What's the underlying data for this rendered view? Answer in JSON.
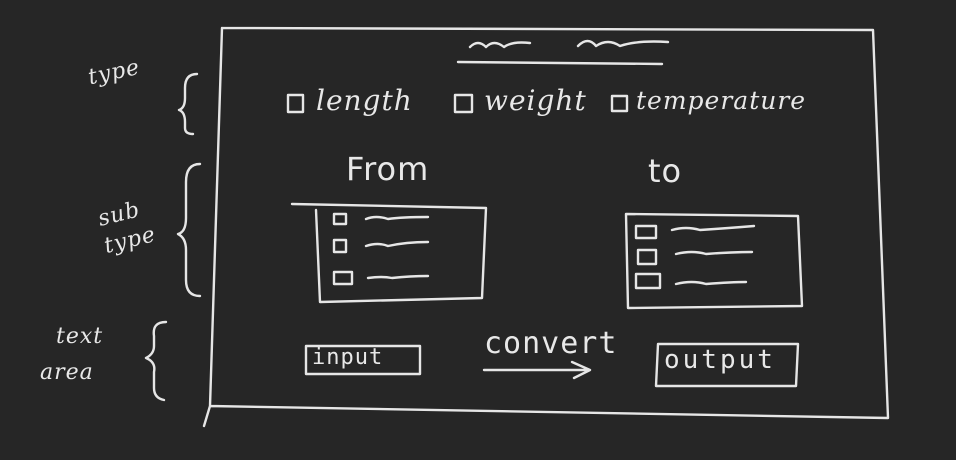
{
  "annotations": {
    "type": "type",
    "subtype_line1": "sub",
    "subtype_line2": "type",
    "textarea_line1": "text",
    "textarea_line2": "area"
  },
  "type_options": [
    "length",
    "weight",
    "temperature"
  ],
  "from_label": "From",
  "to_label": "to",
  "input_label": "input",
  "convert_label": "convert",
  "output_label": "output",
  "colors": {
    "background": "#262626",
    "ink": "#e6e6e6"
  }
}
